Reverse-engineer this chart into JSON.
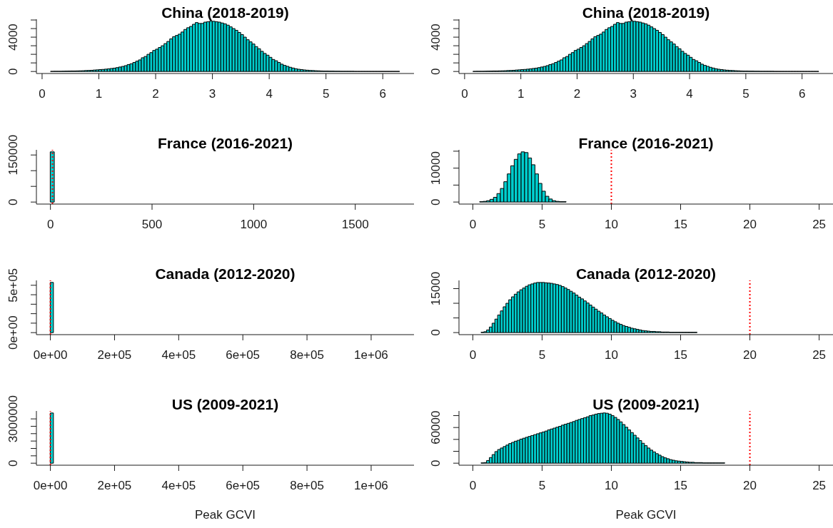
{
  "chart_data": [
    {
      "type": "histogram",
      "title": "China (2018-2019)",
      "color": "#00cdcd",
      "xlim": [
        -0.1,
        6.55
      ],
      "ylim": [
        -235,
        6085
      ],
      "xticks": [
        0,
        1,
        2,
        3,
        4,
        5,
        6
      ],
      "yticks": [
        0,
        {
          "value": 1000,
          "label": null
        },
        {
          "value": 2000,
          "label": null
        },
        {
          "value": 3000,
          "label": null
        },
        4000,
        {
          "value": 5000,
          "label": null
        },
        {
          "value": 6000,
          "label": null
        }
      ],
      "bins": [
        0.15,
        0.2,
        0.25,
        0.3,
        0.35,
        0.4,
        0.45,
        0.5,
        0.55,
        0.6,
        0.65,
        0.7,
        0.75,
        0.8,
        0.85,
        0.9,
        0.95,
        1,
        1.05,
        1.1,
        1.15,
        1.2,
        1.25,
        1.3,
        1.35,
        1.4,
        1.45,
        1.5,
        1.55,
        1.6,
        1.65,
        1.7,
        1.75,
        1.8,
        1.85,
        1.9,
        1.95,
        2,
        2.05,
        2.1,
        2.15,
        2.2,
        2.25,
        2.3,
        2.35,
        2.4,
        2.45,
        2.5,
        2.55,
        2.6,
        2.65,
        2.7,
        2.75,
        2.8,
        2.85,
        2.9,
        2.95,
        3,
        3.05,
        3.1,
        3.15,
        3.2,
        3.25,
        3.3,
        3.35,
        3.4,
        3.45,
        3.5,
        3.55,
        3.6,
        3.65,
        3.7,
        3.75,
        3.8,
        3.85,
        3.9,
        3.95,
        4,
        4.05,
        4.1,
        4.15,
        4.2,
        4.25,
        4.3,
        4.35,
        4.4,
        4.45,
        4.5,
        4.55,
        4.6,
        4.65,
        4.7,
        4.75,
        4.8,
        4.85,
        4.9,
        4.95,
        5,
        5.05,
        5.1,
        5.15,
        5.2,
        5.25,
        5.3,
        5.35,
        5.4,
        5.45,
        5.5,
        5.55,
        5.6,
        5.65,
        5.7,
        5.75,
        5.8,
        5.85,
        5.9,
        5.95,
        6,
        6.05,
        6.1,
        6.15,
        6.2,
        6.25,
        6.3
      ],
      "values": [
        10,
        20,
        20,
        20,
        30,
        40,
        50,
        60,
        60,
        70,
        80,
        90,
        110,
        120,
        140,
        170,
        190,
        220,
        240,
        270,
        310,
        350,
        390,
        450,
        520,
        590,
        680,
        800,
        900,
        1050,
        1200,
        1350,
        1600,
        1750,
        2000,
        2200,
        2450,
        2600,
        2800,
        3000,
        3250,
        3500,
        3800,
        4050,
        4200,
        4350,
        4600,
        4900,
        5100,
        5250,
        5500,
        5700,
        5600,
        5600,
        5750,
        5800,
        5850,
        5850,
        5800,
        5750,
        5650,
        5550,
        5400,
        5200,
        5000,
        4800,
        4550,
        4300,
        4000,
        3700,
        3450,
        3200,
        2900,
        2650,
        2350,
        2100,
        1900,
        1650,
        1400,
        1250,
        1050,
        850,
        710,
        600,
        490,
        400,
        320,
        260,
        220,
        180,
        150,
        120,
        110,
        90,
        80,
        60,
        50,
        50,
        40,
        40,
        30,
        30,
        20,
        20,
        20,
        20,
        20,
        10,
        10,
        10,
        10,
        10,
        10,
        10,
        10,
        10,
        10,
        10,
        10,
        10,
        10,
        10,
        10
      ]
    },
    {
      "type": "histogram",
      "title": "China (2018-2019)",
      "color": "#00cdcd",
      "xlim": [
        -0.1,
        6.55
      ],
      "ylim": [
        -235,
        6085
      ],
      "xticks": [
        0,
        1,
        2,
        3,
        4,
        5,
        6
      ],
      "yticks": [
        0,
        {
          "value": 1000,
          "label": null
        },
        {
          "value": 2000,
          "label": null
        },
        {
          "value": 3000,
          "label": null
        },
        4000,
        {
          "value": 5000,
          "label": null
        },
        {
          "value": 6000,
          "label": null
        }
      ],
      "bins": [
        0.15,
        0.2,
        0.25,
        0.3,
        0.35,
        0.4,
        0.45,
        0.5,
        0.55,
        0.6,
        0.65,
        0.7,
        0.75,
        0.8,
        0.85,
        0.9,
        0.95,
        1,
        1.05,
        1.1,
        1.15,
        1.2,
        1.25,
        1.3,
        1.35,
        1.4,
        1.45,
        1.5,
        1.55,
        1.6,
        1.65,
        1.7,
        1.75,
        1.8,
        1.85,
        1.9,
        1.95,
        2,
        2.05,
        2.1,
        2.15,
        2.2,
        2.25,
        2.3,
        2.35,
        2.4,
        2.45,
        2.5,
        2.55,
        2.6,
        2.65,
        2.7,
        2.75,
        2.8,
        2.85,
        2.9,
        2.95,
        3,
        3.05,
        3.1,
        3.15,
        3.2,
        3.25,
        3.3,
        3.35,
        3.4,
        3.45,
        3.5,
        3.55,
        3.6,
        3.65,
        3.7,
        3.75,
        3.8,
        3.85,
        3.9,
        3.95,
        4,
        4.05,
        4.1,
        4.15,
        4.2,
        4.25,
        4.3,
        4.35,
        4.4,
        4.45,
        4.5,
        4.55,
        4.6,
        4.65,
        4.7,
        4.75,
        4.8,
        4.85,
        4.9,
        4.95,
        5,
        5.05,
        5.1,
        5.15,
        5.2,
        5.25,
        5.3,
        5.35,
        5.4,
        5.45,
        5.5,
        5.55,
        5.6,
        5.65,
        5.7,
        5.75,
        5.8,
        5.85,
        5.9,
        5.95,
        6,
        6.05,
        6.1,
        6.15,
        6.2,
        6.25,
        6.3
      ],
      "values": [
        10,
        20,
        20,
        20,
        30,
        40,
        50,
        60,
        60,
        70,
        80,
        90,
        110,
        120,
        140,
        170,
        190,
        220,
        240,
        270,
        310,
        350,
        390,
        450,
        520,
        590,
        680,
        800,
        900,
        1050,
        1200,
        1350,
        1600,
        1750,
        2000,
        2200,
        2450,
        2600,
        2800,
        3000,
        3250,
        3500,
        3800,
        4050,
        4200,
        4350,
        4600,
        4900,
        5100,
        5250,
        5500,
        5700,
        5600,
        5600,
        5750,
        5800,
        5850,
        5850,
        5800,
        5750,
        5650,
        5550,
        5400,
        5200,
        5000,
        4800,
        4550,
        4300,
        4000,
        3700,
        3450,
        3200,
        2900,
        2650,
        2350,
        2100,
        1900,
        1650,
        1400,
        1250,
        1050,
        850,
        710,
        600,
        490,
        400,
        320,
        260,
        220,
        180,
        150,
        120,
        110,
        90,
        80,
        60,
        50,
        50,
        40,
        40,
        30,
        30,
        20,
        20,
        20,
        20,
        20,
        10,
        10,
        10,
        10,
        10,
        10,
        10,
        10,
        10,
        10,
        10,
        10,
        10,
        10,
        10,
        10
      ]
    },
    {
      "type": "histogram",
      "title": "France (2016-2021)",
      "color": "#00cdcd",
      "xlim": [
        -69,
        1789
      ],
      "ylim": [
        -6400,
        166400
      ],
      "xticks": [
        0,
        500,
        1000,
        1500
      ],
      "yticks": [
        0,
        {
          "value": 50000,
          "label": null
        },
        {
          "value": 100000,
          "label": null
        },
        150000
      ],
      "ref_lines": [
        {
          "axis": "x",
          "value": 10,
          "color": "#ff0000",
          "line_style": "dotted"
        }
      ],
      "bins": [
        0,
        20,
        40,
        60,
        80,
        100,
        120,
        140,
        160,
        180,
        200,
        220,
        240,
        260,
        280,
        300,
        320,
        340,
        360,
        380,
        400,
        420,
        440,
        460,
        480,
        500,
        520,
        540,
        560,
        580,
        600,
        620,
        640,
        660,
        680,
        700,
        720,
        740,
        760,
        780,
        800,
        820,
        840,
        860,
        880,
        900,
        920,
        940,
        960,
        980,
        1000,
        1020,
        1040,
        1060,
        1080,
        1100,
        1120,
        1140,
        1160,
        1180,
        1200,
        1220,
        1240,
        1260,
        1280,
        1300,
        1320,
        1340,
        1360,
        1380,
        1400,
        1420,
        1440,
        1460,
        1480,
        1500,
        1520,
        1540,
        1560,
        1580,
        1600,
        1620,
        1640,
        1660,
        1680,
        1700,
        1720
      ],
      "values": [
        160000,
        0,
        0,
        0,
        0,
        0,
        0,
        0,
        0,
        0,
        0,
        0,
        0,
        0,
        0,
        0,
        0,
        0,
        0,
        0,
        0,
        0,
        0,
        0,
        0,
        0,
        0,
        0,
        0,
        0,
        0,
        0,
        0,
        0,
        0,
        0,
        0,
        0,
        0,
        0,
        0,
        0,
        0,
        0,
        0,
        0,
        0,
        0,
        0,
        0,
        0,
        0,
        0,
        0,
        0,
        0,
        0,
        0,
        0,
        0,
        0,
        0,
        0,
        0,
        0,
        0,
        0,
        0,
        0,
        0,
        0,
        0,
        0,
        0,
        0,
        0,
        0,
        0,
        0,
        0,
        0,
        0,
        0,
        0,
        0,
        0
      ]
    },
    {
      "type": "histogram",
      "title": "France (2016-2021)",
      "color": "#00cdcd",
      "xlim": [
        -1,
        26
      ],
      "ylim": [
        -600,
        15400
      ],
      "xticks": [
        0,
        5,
        10,
        15,
        20,
        25
      ],
      "yticks": [
        0,
        {
          "value": 5000,
          "label": null
        },
        10000,
        {
          "value": 15000,
          "label": null
        }
      ],
      "ref_lines": [
        {
          "axis": "x",
          "value": 10,
          "color": "#ff0000",
          "line_style": "dotted"
        }
      ],
      "bins": [
        0,
        0.25,
        0.5,
        0.75,
        1,
        1.25,
        1.5,
        1.75,
        2,
        2.25,
        2.5,
        2.75,
        3,
        3.25,
        3.5,
        3.75,
        4,
        4.25,
        4.5,
        4.75,
        5,
        5.25,
        5.5,
        5.75,
        6,
        6.25,
        6.5,
        6.75,
        7,
        7.25,
        7.5,
        7.75,
        8,
        8.25,
        8.5,
        8.75,
        9,
        9.25,
        9.5,
        9.75,
        10,
        10.25,
        10.5,
        10.75,
        11,
        11.25,
        11.5,
        11.75,
        12,
        12.25,
        12.5,
        12.75,
        13,
        13.25,
        13.5,
        13.75,
        14,
        14.25,
        14.5,
        14.75,
        15,
        15.25,
        15.5,
        15.75,
        16,
        16.25,
        16.5,
        16.75,
        17,
        17.25,
        17.5,
        17.75,
        18,
        18.25,
        18.5,
        18.75,
        19,
        19.25,
        19.5,
        19.75,
        20,
        20.25,
        20.5,
        20.75,
        21,
        21.25,
        21.5,
        21.75,
        22,
        22.25,
        22.5,
        22.75,
        23,
        23.25,
        23.5,
        23.75,
        24,
        24.25,
        24.5,
        24.75,
        25
      ],
      "values": [
        0,
        0,
        100,
        200,
        400,
        800,
        1400,
        2500,
        4000,
        6000,
        8300,
        10700,
        12600,
        14200,
        14800,
        14600,
        13000,
        11000,
        8300,
        5500,
        3200,
        1700,
        900,
        400,
        200,
        100,
        100,
        0,
        0,
        0,
        0,
        0,
        0,
        0,
        0,
        0,
        0,
        0,
        0,
        0,
        0,
        0,
        0,
        0,
        0,
        0,
        0,
        0,
        0,
        0,
        0,
        0,
        0,
        0,
        0,
        0,
        0,
        0,
        0,
        0,
        0,
        0,
        0,
        0,
        0,
        0,
        0,
        0,
        0,
        0,
        0,
        0,
        0,
        0,
        0,
        0,
        0,
        0,
        0,
        0,
        0,
        0,
        0,
        0,
        0,
        0,
        0,
        0,
        0,
        0,
        0,
        0,
        0,
        0,
        0,
        0,
        0,
        0,
        0,
        0
      ]
    },
    {
      "type": "histogram",
      "title": "Canada (2012-2020)",
      "color": "#00cdcd",
      "xlim": [
        -43600,
        1133600
      ],
      "ylim": [
        -21200,
        551200
      ],
      "xticks": [
        {
          "value": 0,
          "label": "0e+00"
        },
        {
          "value": 200000,
          "label": "2e+05"
        },
        {
          "value": 400000,
          "label": "4e+05"
        },
        {
          "value": 600000,
          "label": "6e+05"
        },
        {
          "value": 800000,
          "label": "8e+05"
        },
        {
          "value": 1000000,
          "label": "1e+06"
        }
      ],
      "yticks": [
        {
          "value": 0,
          "label": "0e+00"
        },
        {
          "value": 100000,
          "label": null
        },
        {
          "value": 200000,
          "label": null
        },
        {
          "value": 300000,
          "label": null
        },
        {
          "value": 400000,
          "label": null
        },
        {
          "value": 500000,
          "label": "5e+05"
        }
      ],
      "ref_lines": [
        {
          "axis": "x",
          "value": 20,
          "color": "#ff0000",
          "line_style": "dotted"
        }
      ],
      "bins": [
        0,
        10000,
        20000,
        30000,
        40000,
        50000,
        60000,
        70000,
        80000,
        90000,
        100000,
        110000,
        120000,
        130000,
        140000,
        150000,
        160000,
        170000,
        180000,
        190000,
        200000,
        210000,
        220000,
        230000,
        240000,
        250000,
        260000,
        270000,
        280000,
        290000,
        300000,
        310000,
        320000,
        330000,
        340000,
        350000,
        360000,
        370000,
        380000,
        390000,
        400000,
        410000,
        420000,
        430000,
        440000,
        450000,
        460000,
        470000,
        480000,
        490000,
        500000,
        510000,
        520000,
        530000,
        540000,
        550000,
        560000,
        570000,
        580000,
        590000,
        600000,
        610000,
        620000,
        630000,
        640000,
        650000,
        660000,
        670000,
        680000,
        690000,
        700000,
        710000,
        720000,
        730000,
        740000,
        750000,
        760000,
        770000,
        780000,
        790000,
        800000,
        810000,
        820000,
        830000,
        840000,
        850000,
        860000,
        870000,
        880000,
        890000,
        900000,
        910000,
        920000,
        930000,
        940000,
        950000,
        960000,
        970000,
        980000,
        990000,
        1000000,
        1010000,
        1020000,
        1030000,
        1040000,
        1050000,
        1060000,
        1070000,
        1080000,
        1090000
      ],
      "values": [
        530000,
        0,
        0,
        0,
        0,
        0,
        0,
        0,
        0,
        0,
        0,
        0,
        0,
        0,
        0,
        0,
        0,
        0,
        0,
        0,
        0,
        0,
        0,
        0,
        0,
        0,
        0,
        0,
        0,
        0,
        0,
        0,
        0,
        0,
        0,
        0,
        0,
        0,
        0,
        0,
        0,
        0,
        0,
        0,
        0,
        0,
        0,
        0,
        0,
        0,
        0,
        0,
        0,
        0,
        0,
        0,
        0,
        0,
        0,
        0,
        0,
        0,
        0,
        0,
        0,
        0,
        0,
        0,
        0,
        0,
        0,
        0,
        0,
        0,
        0,
        0,
        0,
        0,
        0,
        0,
        0,
        0,
        0,
        0,
        0,
        0,
        0,
        0,
        0,
        0,
        0,
        0,
        0,
        0,
        0,
        0,
        0,
        0,
        0,
        0,
        0,
        0,
        0,
        0,
        0,
        0,
        0,
        0,
        0
      ]
    },
    {
      "type": "histogram",
      "title": "Canada (2012-2020)",
      "color": "#00cdcd",
      "xlim": [
        -1,
        26
      ],
      "ylim": [
        -700,
        17800
      ],
      "xticks": [
        0,
        5,
        10,
        15,
        20,
        25
      ],
      "yticks": [
        0,
        {
          "value": 5000,
          "label": null
        },
        {
          "value": 10000,
          "label": null
        },
        15000
      ],
      "ref_lines": [
        {
          "axis": "x",
          "value": 20,
          "color": "#ff0000",
          "line_style": "dotted"
        }
      ],
      "bins": [
        0,
        0.2,
        0.4,
        0.6,
        0.8,
        1,
        1.2,
        1.4,
        1.6,
        1.8,
        2,
        2.2,
        2.4,
        2.6,
        2.8,
        3,
        3.2,
        3.4,
        3.6,
        3.8,
        4,
        4.2,
        4.4,
        4.6,
        4.8,
        5,
        5.2,
        5.4,
        5.6,
        5.8,
        6,
        6.2,
        6.4,
        6.6,
        6.8,
        7,
        7.2,
        7.4,
        7.6,
        7.8,
        8,
        8.2,
        8.4,
        8.6,
        8.8,
        9,
        9.2,
        9.4,
        9.6,
        9.8,
        10,
        10.2,
        10.4,
        10.6,
        10.8,
        11,
        11.2,
        11.4,
        11.6,
        11.8,
        12,
        12.2,
        12.4,
        12.6,
        12.8,
        13,
        13.2,
        13.4,
        13.6,
        13.8,
        14,
        14.2,
        14.4,
        14.6,
        14.8,
        15,
        15.2,
        15.4,
        15.6,
        15.8,
        16,
        16.2,
        16.4,
        16.6,
        16.8,
        17,
        17.2,
        17.4,
        17.6,
        17.8,
        18,
        18.2,
        18.4,
        18.6,
        18.8,
        19,
        19.2,
        19.4,
        19.6,
        19.8,
        20,
        20.2,
        20.4,
        20.6,
        20.8,
        21,
        21.2,
        21.4,
        21.6,
        21.8,
        22,
        22.2,
        22.4,
        22.6,
        22.8,
        23,
        23.2,
        23.4,
        23.6,
        23.8,
        24,
        24.2,
        24.4,
        24.6,
        24.8,
        25
      ],
      "values": [
        0,
        0,
        0,
        100,
        300,
        900,
        1900,
        3200,
        4600,
        6000,
        7400,
        8800,
        10000,
        11200,
        12200,
        13100,
        13900,
        14600,
        15200,
        15800,
        16300,
        16600,
        16900,
        17100,
        17100,
        17100,
        17000,
        16900,
        16800,
        16600,
        16400,
        16100,
        15700,
        15200,
        14700,
        14100,
        13500,
        12800,
        12100,
        11500,
        10800,
        10100,
        9400,
        8700,
        8000,
        7300,
        6700,
        6000,
        5400,
        4800,
        4200,
        3700,
        3200,
        2800,
        2400,
        2100,
        1800,
        1500,
        1300,
        1100,
        900,
        700,
        600,
        500,
        400,
        400,
        300,
        300,
        200,
        200,
        200,
        100,
        100,
        100,
        100,
        100,
        100,
        100,
        100,
        100,
        100,
        0,
        0,
        0,
        0,
        0,
        0,
        0,
        0,
        0,
        0,
        0,
        0,
        0,
        0,
        0,
        0,
        0,
        0,
        0,
        0,
        0,
        0,
        0,
        0,
        0,
        0,
        0,
        0,
        0,
        0,
        0,
        0,
        0,
        0,
        0,
        0,
        0,
        0,
        0,
        0,
        0,
        0,
        0,
        0
      ]
    },
    {
      "type": "histogram",
      "title": "US (2009-2021)",
      "xlabel": "Peak GCVI",
      "color": "#00cdcd",
      "xlim": [
        -43600,
        1133600
      ],
      "ylim": [
        -136000,
        3536000
      ],
      "xticks": [
        {
          "value": 0,
          "label": "0e+00"
        },
        {
          "value": 200000,
          "label": "2e+05"
        },
        {
          "value": 400000,
          "label": "4e+05"
        },
        {
          "value": 600000,
          "label": "6e+05"
        },
        {
          "value": 800000,
          "label": "8e+05"
        },
        {
          "value": 1000000,
          "label": "1e+06"
        }
      ],
      "yticks": [
        0,
        {
          "value": 500000,
          "label": null
        },
        {
          "value": 1000000,
          "label": null
        },
        {
          "value": 1500000,
          "label": null
        },
        {
          "value": 2000000,
          "label": null
        },
        {
          "value": 2500000,
          "label": null
        },
        3000000
      ],
      "ref_lines": [
        {
          "axis": "x",
          "value": 20,
          "color": "#ff0000",
          "line_style": "dotted"
        }
      ],
      "bins": [
        0,
        10000,
        20000,
        30000,
        40000,
        50000,
        60000,
        70000,
        80000,
        90000,
        100000,
        110000,
        120000,
        130000,
        140000,
        150000,
        160000,
        170000,
        180000,
        190000,
        200000,
        210000,
        220000,
        230000,
        240000,
        250000,
        260000,
        270000,
        280000,
        290000,
        300000,
        310000,
        320000,
        330000,
        340000,
        350000,
        360000,
        370000,
        380000,
        390000,
        400000,
        410000,
        420000,
        430000,
        440000,
        450000,
        460000,
        470000,
        480000,
        490000,
        500000,
        510000,
        520000,
        530000,
        540000,
        550000,
        560000,
        570000,
        580000,
        590000,
        600000,
        610000,
        620000,
        630000,
        640000,
        650000,
        660000,
        670000,
        680000,
        690000,
        700000,
        710000,
        720000,
        730000,
        740000,
        750000,
        760000,
        770000,
        780000,
        790000,
        800000,
        810000,
        820000,
        830000,
        840000,
        850000,
        860000,
        870000,
        880000,
        890000,
        900000,
        910000,
        920000,
        930000,
        940000,
        950000,
        960000,
        970000,
        980000,
        990000,
        1000000,
        1010000,
        1020000,
        1030000,
        1040000,
        1050000,
        1060000,
        1070000,
        1080000,
        1090000
      ],
      "values": [
        3400000,
        0,
        0,
        0,
        0,
        0,
        0,
        0,
        0,
        0,
        0,
        0,
        0,
        0,
        0,
        0,
        0,
        0,
        0,
        0,
        0,
        0,
        0,
        0,
        0,
        0,
        0,
        0,
        0,
        0,
        0,
        0,
        0,
        0,
        0,
        0,
        0,
        0,
        0,
        0,
        0,
        0,
        0,
        0,
        0,
        0,
        0,
        0,
        0,
        0,
        0,
        0,
        0,
        0,
        0,
        0,
        0,
        0,
        0,
        0,
        0,
        0,
        0,
        0,
        0,
        0,
        0,
        0,
        0,
        0,
        0,
        0,
        0,
        0,
        0,
        0,
        0,
        0,
        0,
        0,
        0,
        0,
        0,
        0,
        0,
        0,
        0,
        0,
        0,
        0,
        0,
        0,
        0,
        0,
        0,
        0,
        0,
        0,
        0,
        0,
        0,
        0,
        0,
        0,
        0,
        0,
        0,
        0,
        0
      ]
    },
    {
      "type": "histogram",
      "title": "US (2009-2021)",
      "xlabel": "Peak GCVI",
      "color": "#00cdcd",
      "xlim": [
        -1,
        26
      ],
      "ylim": [
        -3400,
        87800
      ],
      "xticks": [
        0,
        5,
        10,
        15,
        20,
        25
      ],
      "yticks": [
        0,
        {
          "value": 20000,
          "label": null
        },
        {
          "value": 40000,
          "label": null
        },
        60000,
        {
          "value": 80000,
          "label": null
        }
      ],
      "ref_lines": [
        {
          "axis": "x",
          "value": 20,
          "color": "#ff0000",
          "line_style": "dotted"
        }
      ],
      "bins": [
        0,
        0.2,
        0.4,
        0.6,
        0.8,
        1,
        1.2,
        1.4,
        1.6,
        1.8,
        2,
        2.2,
        2.4,
        2.6,
        2.8,
        3,
        3.2,
        3.4,
        3.6,
        3.8,
        4,
        4.2,
        4.4,
        4.6,
        4.8,
        5,
        5.2,
        5.4,
        5.6,
        5.8,
        6,
        6.2,
        6.4,
        6.6,
        6.8,
        7,
        7.2,
        7.4,
        7.6,
        7.8,
        8,
        8.2,
        8.4,
        8.6,
        8.8,
        9,
        9.2,
        9.4,
        9.6,
        9.8,
        10,
        10.2,
        10.4,
        10.6,
        10.8,
        11,
        11.2,
        11.4,
        11.6,
        11.8,
        12,
        12.2,
        12.4,
        12.6,
        12.8,
        13,
        13.2,
        13.4,
        13.6,
        13.8,
        14,
        14.2,
        14.4,
        14.6,
        14.8,
        15,
        15.2,
        15.4,
        15.6,
        15.8,
        16,
        16.2,
        16.4,
        16.6,
        16.8,
        17,
        17.2,
        17.4,
        17.6,
        17.8,
        18,
        18.2,
        18.4,
        18.6,
        18.8,
        19,
        19.2,
        19.4,
        19.6,
        19.8,
        20,
        20.2,
        20.4,
        20.6,
        20.8,
        21,
        21.2,
        21.4,
        21.6,
        21.8,
        22,
        22.2,
        22.4,
        22.6,
        22.8,
        23,
        23.2,
        23.4,
        23.6,
        23.8,
        24,
        24.2,
        24.4,
        24.6,
        24.8,
        25
      ],
      "values": [
        0,
        0,
        0,
        500,
        1000,
        4500,
        9500,
        14500,
        19500,
        23000,
        25500,
        28000,
        30500,
        33000,
        35000,
        37000,
        38500,
        40500,
        42000,
        43500,
        45000,
        46500,
        48000,
        49500,
        51000,
        52500,
        54000,
        56000,
        57500,
        59000,
        60500,
        62000,
        64000,
        65500,
        67000,
        68500,
        70000,
        72000,
        73500,
        75000,
        76500,
        78000,
        80000,
        81000,
        82500,
        83500,
        84000,
        84500,
        84000,
        82500,
        80000,
        77000,
        73500,
        69500,
        65000,
        60500,
        56000,
        51500,
        47000,
        42500,
        38000,
        33500,
        29500,
        25500,
        22000,
        19000,
        16000,
        13500,
        11000,
        9000,
        7500,
        6000,
        5000,
        4000,
        3500,
        3000,
        2500,
        2000,
        1500,
        1500,
        1000,
        1000,
        1000,
        500,
        500,
        500,
        500,
        500,
        500,
        500,
        500,
        0,
        0,
        0,
        0,
        0,
        0,
        0,
        0,
        0,
        0,
        0,
        0,
        0,
        0,
        0,
        0,
        0,
        0,
        0,
        0,
        0,
        0,
        0,
        0,
        0,
        0,
        0,
        0,
        0,
        0,
        0,
        0,
        0,
        0
      ]
    }
  ]
}
